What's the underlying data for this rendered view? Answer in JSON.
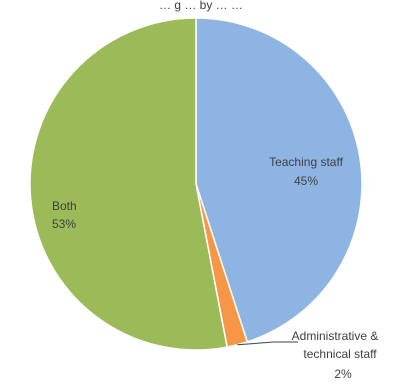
{
  "chart_data": {
    "type": "pie",
    "title": "… g … by … …",
    "slices": [
      {
        "label": "Teaching staff",
        "value": 45,
        "value_label": "45%",
        "color": "#8eb4e3"
      },
      {
        "label": "Administrative & technical staff",
        "label_lines": [
          "Administrative &",
          "technical staff"
        ],
        "value": 2,
        "value_label": "2%",
        "color": "#f79646"
      },
      {
        "label": "Both",
        "value": 53,
        "value_label": "53%",
        "color": "#9bbb59"
      }
    ],
    "start_angle_deg": 0,
    "direction": "clockwise"
  }
}
